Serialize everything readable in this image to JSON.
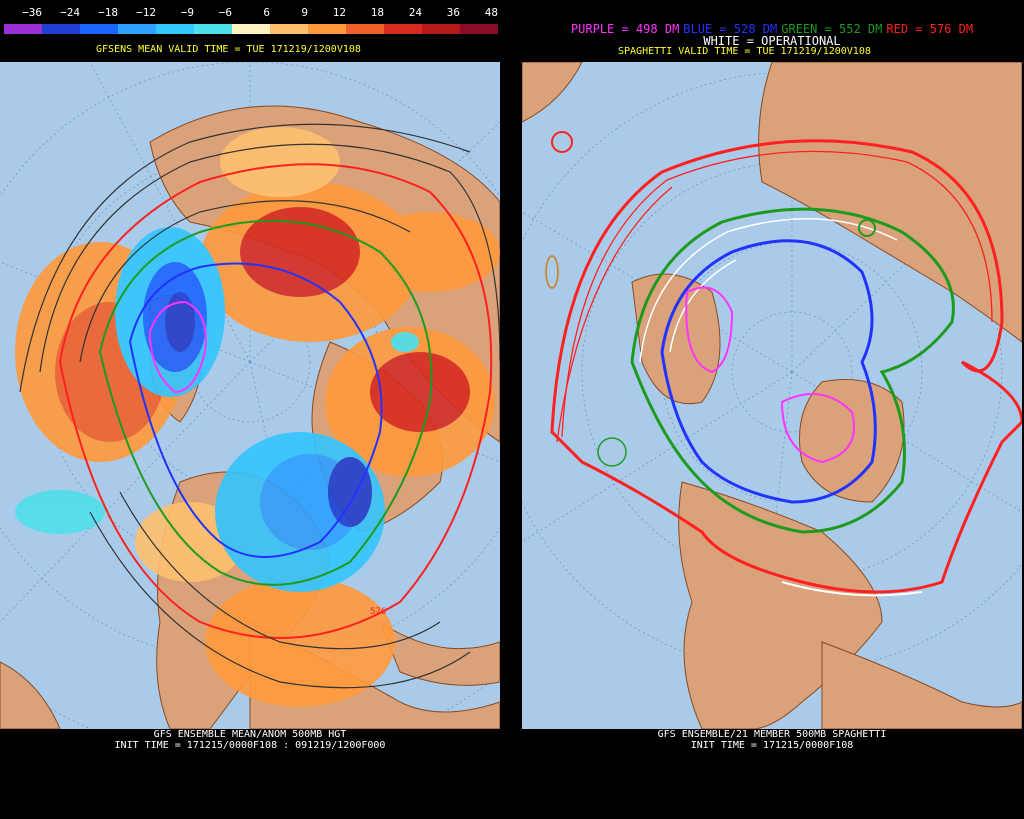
{
  "left": {
    "colorbar_ticks": [
      "−36",
      "−24",
      "−18",
      "−12",
      "−9",
      "−6",
      "6",
      "9",
      "12",
      "18",
      "24",
      "36",
      "48"
    ],
    "colorbar_colors": [
      "#9b30d9",
      "#1f3fd1",
      "#1c66ff",
      "#2ea0ff",
      "#33c6ff",
      "#4fe0ea",
      "#fff2c0",
      "#ffc06e",
      "#ff9a3c",
      "#f0602a",
      "#d72b20",
      "#b41a1a",
      "#8a0b2a"
    ],
    "title": "GFSENS MEAN VALID TIME = TUE 171219/1200V108",
    "footer_line1": "GFS ENSEMBLE MEAN/ANOM 500MB HGT",
    "footer_line2": "INIT TIME = 171215/0000F108 : 091219/1200F000",
    "contour_label": "576"
  },
  "right": {
    "legend": [
      {
        "text": "PURPLE = 498 DM",
        "color": "#ff33ff"
      },
      {
        "text": "BLUE = 528 DM",
        "color": "#2233ff"
      },
      {
        "text": "GREEN = 552 DM",
        "color": "#1e9b1e"
      },
      {
        "text": "RED = 576 DM",
        "color": "#ff2020"
      }
    ],
    "legend_line2": "WHITE = OPERATIONAL",
    "title": "SPAGHETTI VALID TIME = TUE 171219/1200V108",
    "footer_line1": "GFS ENSEMBLE/21 MEMBER 500MB SPAGHETTI",
    "footer_line2": "INIT TIME = 171215/0000F108"
  },
  "colors": {
    "ocean": "#a9cbe9",
    "land": "#d9a27a",
    "coast": "#8a4a22",
    "title_yellow": "#ffff33"
  }
}
